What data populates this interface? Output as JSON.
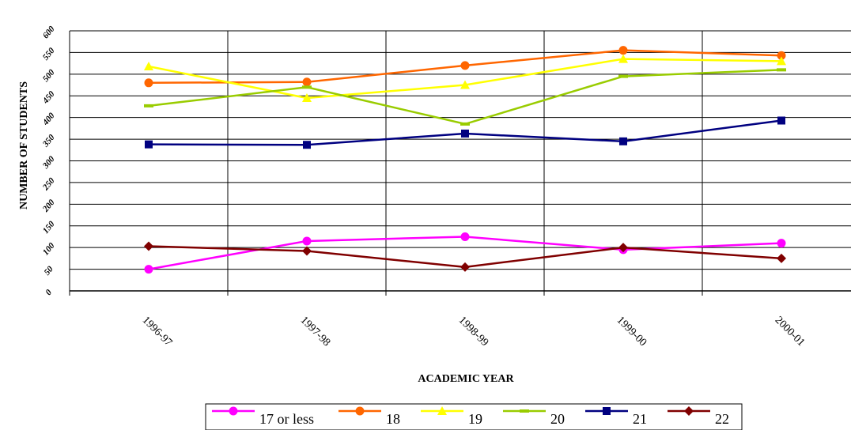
{
  "chart_data": {
    "type": "line",
    "title": "",
    "xlabel": "ACADEMIC YEAR",
    "ylabel": "NUMBER OF STUDENTS",
    "categories": [
      "1996-97",
      "1997-98",
      "1998-99",
      "1999-00",
      "2000-01"
    ],
    "ylim": [
      0,
      600
    ],
    "yticks": [
      "0",
      "50",
      "100",
      "150",
      "200",
      "250",
      "300",
      "350",
      "400",
      "450",
      "500",
      "550",
      "600"
    ],
    "grid": true,
    "legend_position": "bottom",
    "series": [
      {
        "name": "17 or less",
        "values": [
          50,
          115,
          125,
          95,
          110
        ],
        "color": "#ff00ff",
        "marker": "circle"
      },
      {
        "name": "18",
        "values": [
          480,
          482,
          520,
          555,
          543
        ],
        "color": "#ff6600",
        "marker": "circle"
      },
      {
        "name": "19",
        "values": [
          518,
          445,
          475,
          535,
          530
        ],
        "color": "#ffff00",
        "marker": "triangle"
      },
      {
        "name": "20",
        "values": [
          427,
          470,
          385,
          495,
          510
        ],
        "color": "#99cc00",
        "marker": "dash"
      },
      {
        "name": "21",
        "values": [
          338,
          337,
          363,
          345,
          393
        ],
        "color": "#000080",
        "marker": "square"
      },
      {
        "name": "22",
        "values": [
          103,
          92,
          55,
          100,
          75
        ],
        "color": "#800000",
        "marker": "diamond"
      }
    ]
  }
}
